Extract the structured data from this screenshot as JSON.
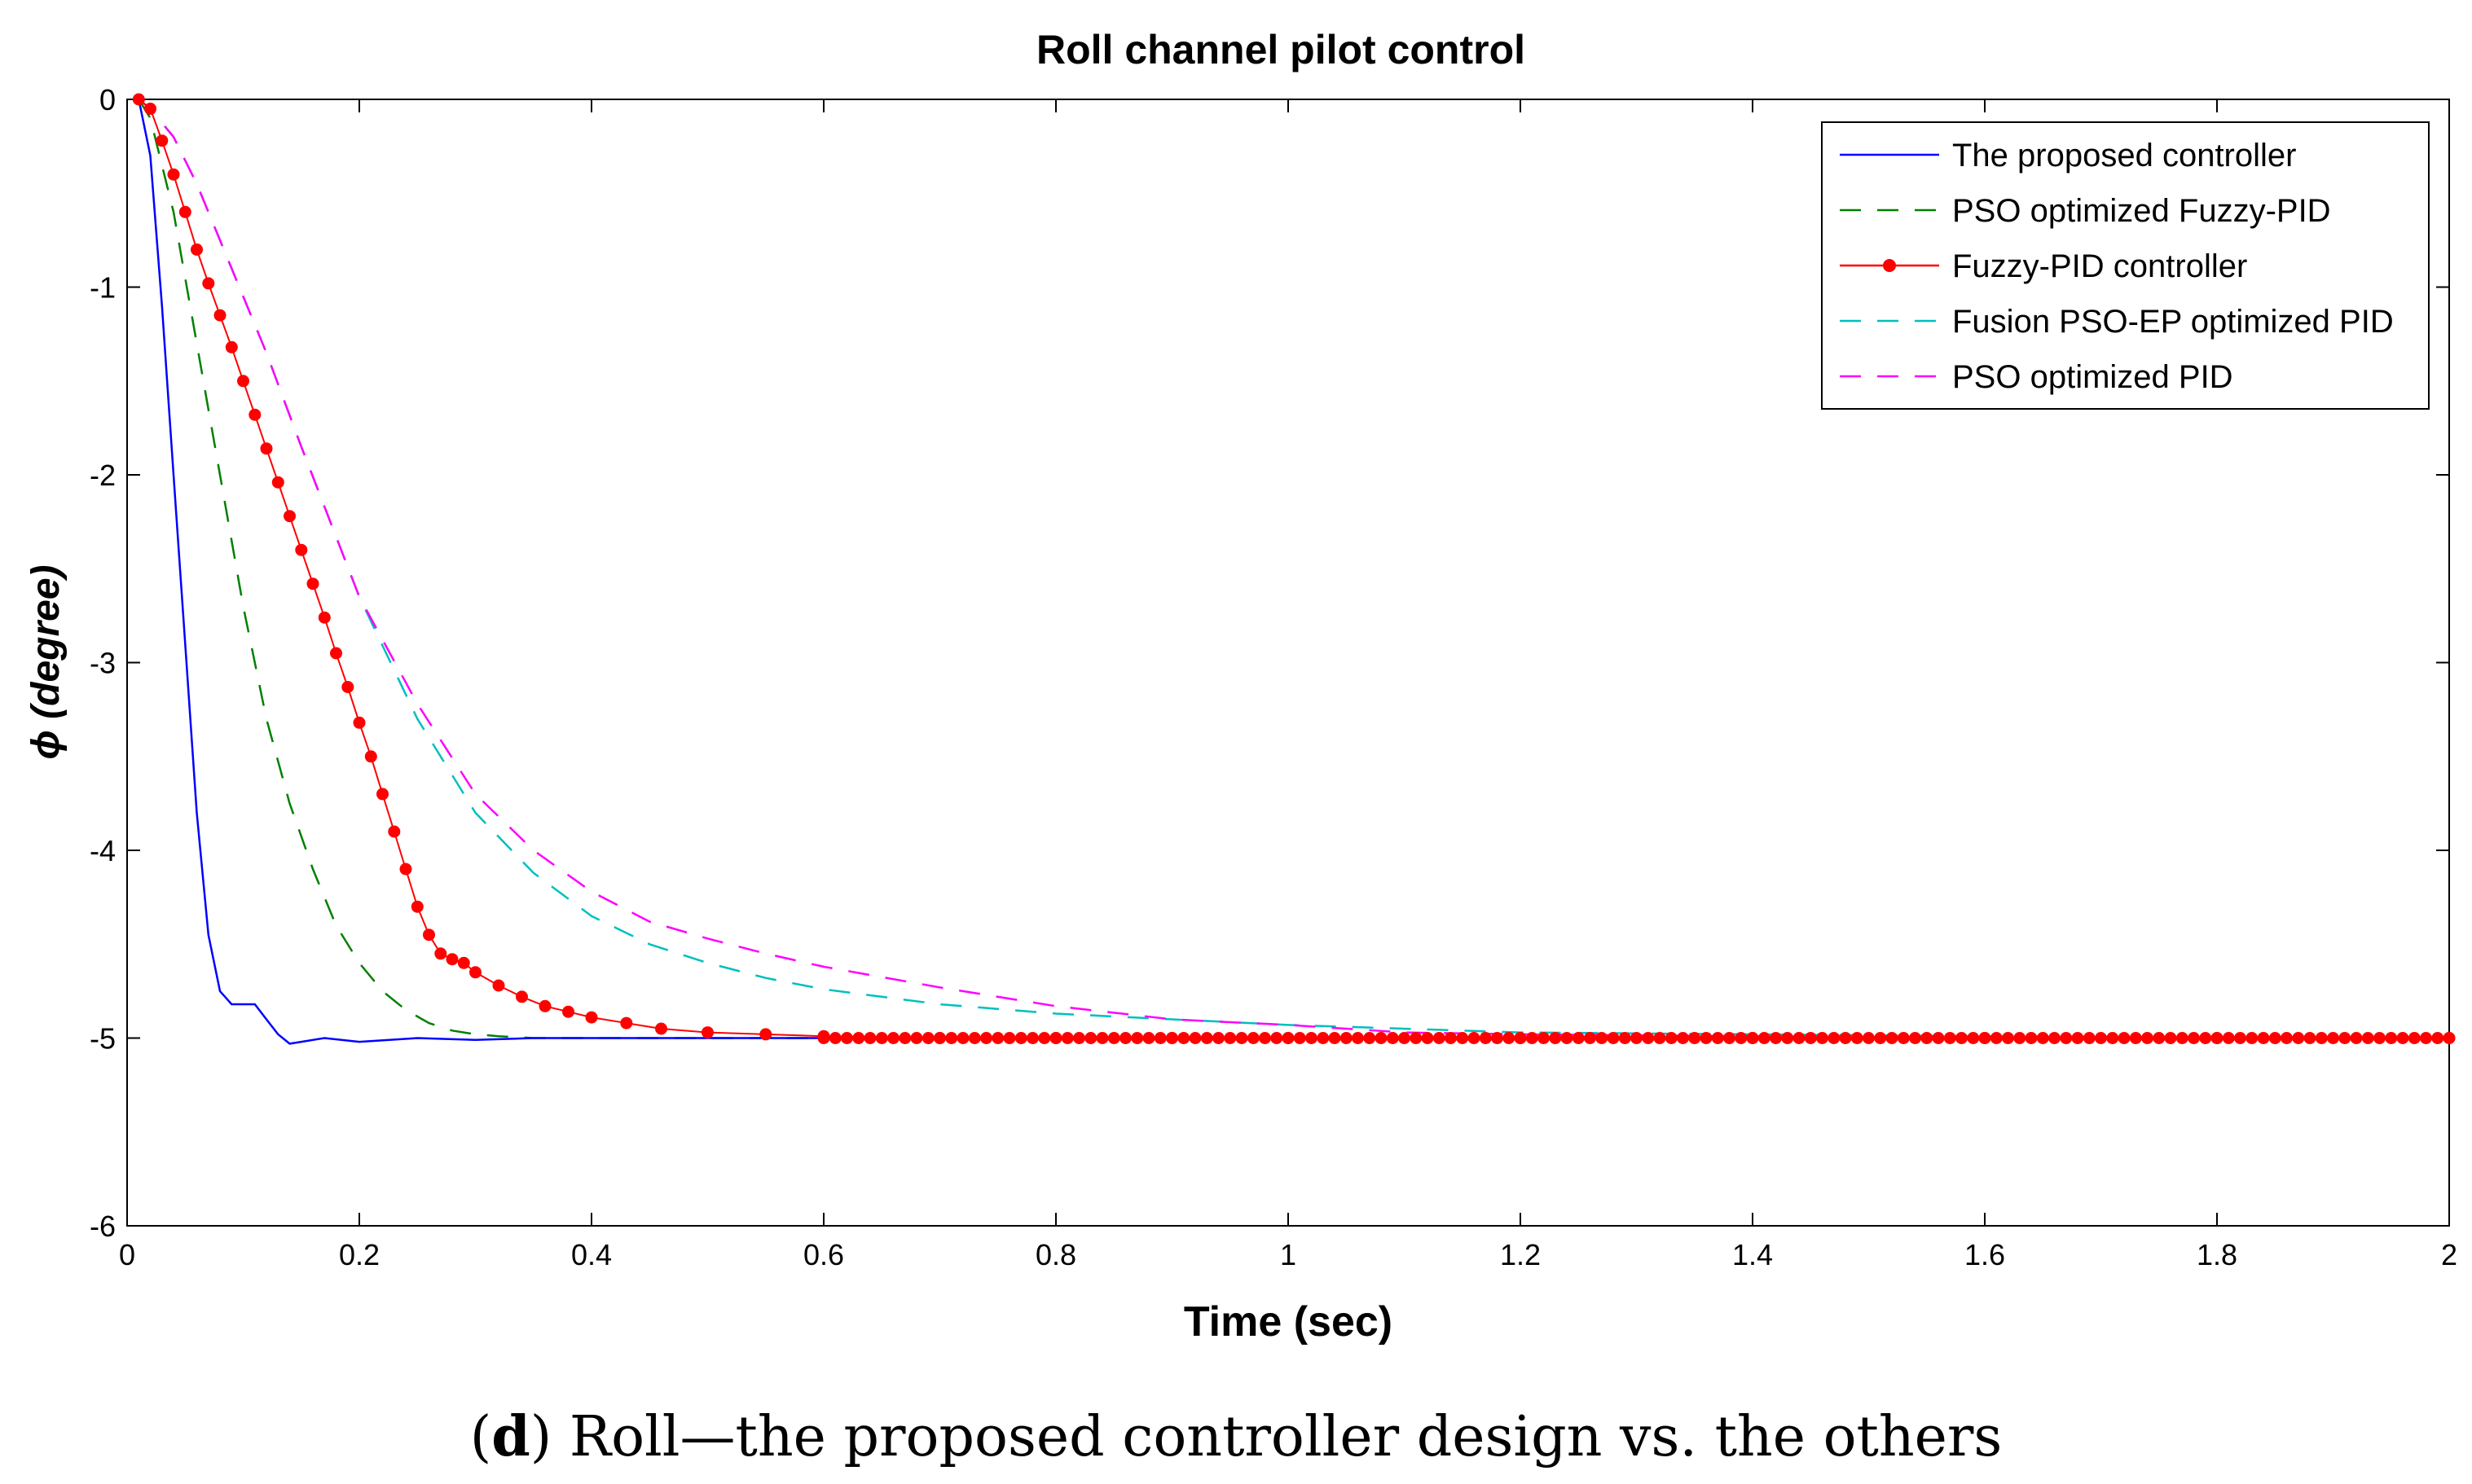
{
  "chart_data": {
    "type": "line",
    "title": "Roll channel pilot control",
    "xlabel": "Time (sec)",
    "ylabel": "ϕ (degree)",
    "xlim": [
      0,
      2
    ],
    "ylim": [
      -6,
      0
    ],
    "xticks": [
      0,
      0.2,
      0.4,
      0.6,
      0.8,
      1,
      1.2,
      1.4,
      1.6,
      1.8,
      2
    ],
    "xtick_labels": [
      "0",
      "0.2",
      "0.4",
      "0.6",
      "0.8",
      "1",
      "1.2",
      "1.4",
      "1.6",
      "1.8",
      "2"
    ],
    "yticks": [
      0,
      -1,
      -2,
      -3,
      -4,
      -5,
      -6
    ],
    "ytick_labels": [
      "0",
      "-1",
      "-2",
      "-3",
      "-4",
      "-5",
      "-6"
    ],
    "grid": false,
    "legend_position": "top-right",
    "series": [
      {
        "name": "The proposed controller",
        "color": "#0000ff",
        "style": "solid",
        "marker": "none",
        "x": [
          0.01,
          0.02,
          0.03,
          0.04,
          0.05,
          0.06,
          0.07,
          0.08,
          0.09,
          0.1,
          0.11,
          0.12,
          0.13,
          0.14,
          0.15,
          0.17,
          0.2,
          0.25,
          0.3,
          0.35,
          0.45,
          0.6,
          0.8,
          1.0,
          1.5,
          2.0
        ],
        "y": [
          0,
          -0.3,
          -1.1,
          -2.0,
          -2.9,
          -3.8,
          -4.45,
          -4.75,
          -4.82,
          -4.82,
          -4.82,
          -4.9,
          -4.98,
          -5.03,
          -5.02,
          -5.0,
          -5.02,
          -5.0,
          -5.01,
          -5.0,
          -5.0,
          -5.0,
          -5.0,
          -5.0,
          -5.0,
          -5.0
        ]
      },
      {
        "name": "PSO optimized Fuzzy-PID",
        "color": "#008000",
        "style": "dashed",
        "marker": "none",
        "x": [
          0.01,
          0.02,
          0.04,
          0.06,
          0.08,
          0.1,
          0.12,
          0.14,
          0.16,
          0.18,
          0.2,
          0.22,
          0.24,
          0.26,
          0.28,
          0.3,
          0.32,
          0.35,
          0.4,
          0.5,
          0.7,
          1.0,
          1.5,
          2.0
        ],
        "y": [
          0,
          -0.1,
          -0.6,
          -1.3,
          -2.0,
          -2.7,
          -3.3,
          -3.75,
          -4.1,
          -4.4,
          -4.6,
          -4.75,
          -4.85,
          -4.92,
          -4.96,
          -4.98,
          -4.99,
          -5.0,
          -5.0,
          -5.0,
          -5.0,
          -5.0,
          -5.0,
          -5.0
        ]
      },
      {
        "name": "Fuzzy-PID controller",
        "color": "#ff0000",
        "style": "solid",
        "marker": "dot",
        "x": [
          0.01,
          0.02,
          0.03,
          0.04,
          0.05,
          0.06,
          0.07,
          0.08,
          0.09,
          0.1,
          0.11,
          0.12,
          0.13,
          0.14,
          0.15,
          0.16,
          0.17,
          0.18,
          0.19,
          0.2,
          0.21,
          0.22,
          0.23,
          0.24,
          0.25,
          0.26,
          0.27,
          0.28,
          0.29,
          0.3,
          0.32,
          0.34,
          0.36,
          0.38,
          0.4,
          0.43,
          0.46,
          0.5,
          0.55,
          0.6,
          0.7,
          0.8,
          0.9,
          1.0,
          1.2,
          1.4,
          1.6,
          1.8,
          2.0
        ],
        "y": [
          0,
          -0.05,
          -0.22,
          -0.4,
          -0.6,
          -0.8,
          -0.98,
          -1.15,
          -1.32,
          -1.5,
          -1.68,
          -1.86,
          -2.04,
          -2.22,
          -2.4,
          -2.58,
          -2.76,
          -2.95,
          -3.13,
          -3.32,
          -3.5,
          -3.7,
          -3.9,
          -4.1,
          -4.3,
          -4.45,
          -4.55,
          -4.58,
          -4.6,
          -4.65,
          -4.72,
          -4.78,
          -4.83,
          -4.86,
          -4.89,
          -4.92,
          -4.95,
          -4.97,
          -4.98,
          -4.99,
          -5.0,
          -5.0,
          -5.0,
          -5.0,
          -5.0,
          -5.0,
          -5.0,
          -5.0,
          -5.0
        ]
      },
      {
        "name": "Fusion PSO-EP optimized PID",
        "color": "#00bfbf",
        "style": "dashed",
        "marker": "none",
        "x": [
          0.01,
          0.02,
          0.04,
          0.06,
          0.08,
          0.1,
          0.12,
          0.15,
          0.2,
          0.25,
          0.3,
          0.35,
          0.4,
          0.45,
          0.5,
          0.55,
          0.6,
          0.7,
          0.8,
          0.9,
          1.0,
          1.1,
          1.2,
          1.4,
          1.6,
          2.0
        ],
        "y": [
          0,
          -0.05,
          -0.2,
          -0.45,
          -0.75,
          -1.05,
          -1.35,
          -1.85,
          -2.65,
          -3.3,
          -3.8,
          -4.12,
          -4.35,
          -4.5,
          -4.6,
          -4.68,
          -4.74,
          -4.82,
          -4.87,
          -4.9,
          -4.93,
          -4.95,
          -4.97,
          -4.98,
          -4.99,
          -5.0
        ]
      },
      {
        "name": "PSO optimized PID",
        "color": "#ff00ff",
        "style": "dashed",
        "marker": "none",
        "x": [
          0.01,
          0.02,
          0.04,
          0.06,
          0.08,
          0.1,
          0.12,
          0.15,
          0.2,
          0.25,
          0.3,
          0.35,
          0.4,
          0.45,
          0.5,
          0.55,
          0.6,
          0.7,
          0.8,
          0.9,
          1.0,
          1.1,
          1.2,
          1.4,
          1.6,
          2.0
        ],
        "y": [
          0,
          -0.05,
          -0.2,
          -0.45,
          -0.75,
          -1.05,
          -1.35,
          -1.85,
          -2.65,
          -3.22,
          -3.7,
          -4.0,
          -4.22,
          -4.38,
          -4.47,
          -4.55,
          -4.62,
          -4.73,
          -4.83,
          -4.9,
          -4.93,
          -4.97,
          -4.98,
          -4.99,
          -5.0,
          -5.0
        ]
      }
    ]
  },
  "caption": {
    "label": "d",
    "text": " Roll—the proposed controller design vs. the others"
  }
}
